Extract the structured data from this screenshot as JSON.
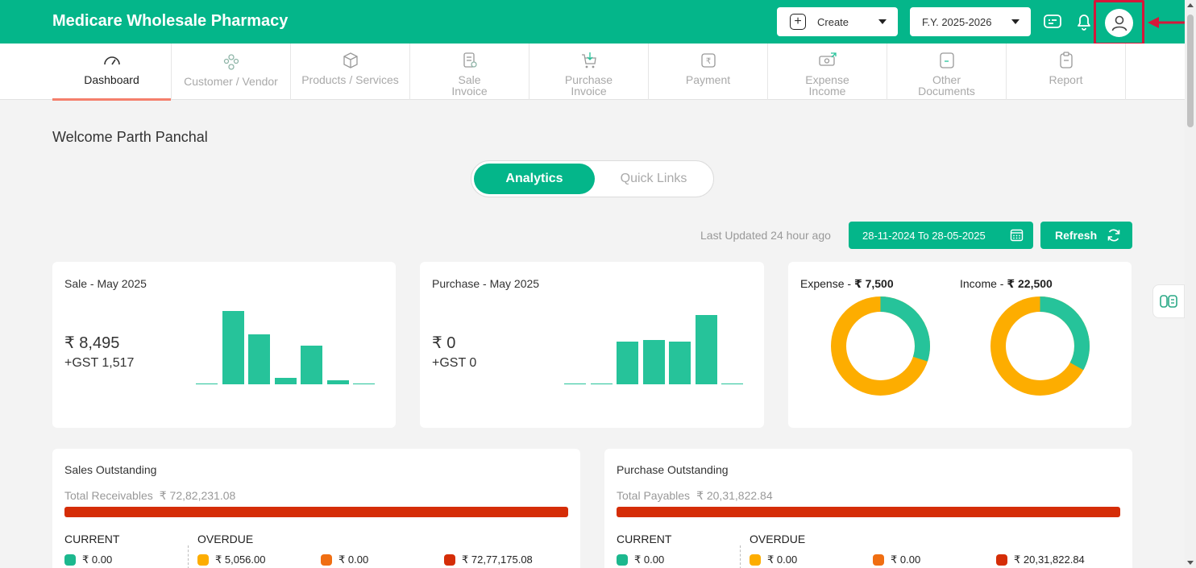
{
  "header": {
    "brand": "Medicare Wholesale Pharmacy",
    "create_label": "Create",
    "fy_label": "F.Y. 2025-2026",
    "icons": [
      "message-icon",
      "bell-icon",
      "user-icon"
    ],
    "brand_color": "#04b68a",
    "highlight_color": "#d6163a"
  },
  "nav": {
    "items": [
      {
        "label": "Dashboard",
        "icon": "speedometer-icon",
        "active": true
      },
      {
        "label": "Customer / Vendor",
        "icon": "people-icon"
      },
      {
        "label": "Products / Services",
        "icon": "box-icon"
      },
      {
        "label1": "Sale",
        "label2": "Invoice",
        "icon": "invoice-icon"
      },
      {
        "label1": "Purchase",
        "label2": "Invoice",
        "icon": "cart-icon"
      },
      {
        "label": "Payment",
        "icon": "rupee-icon"
      },
      {
        "label1": "Expense",
        "label2": "Income",
        "icon": "money-icon"
      },
      {
        "label1": "Other",
        "label2": "Documents",
        "icon": "document-icon"
      },
      {
        "label": "Report",
        "icon": "clipboard-icon"
      }
    ]
  },
  "main": {
    "welcome": "Welcome Parth Panchal",
    "tabs": [
      "Analytics",
      "Quick Links"
    ],
    "last_updated": "Last Updated 24 hour ago",
    "date_range": "28-11-2024 To 28-05-2025",
    "refresh_label": "Refresh"
  },
  "sale_card": {
    "title": "Sale - May 2025",
    "amount": "₹ 8,495",
    "gst": "+GST 1,517",
    "bar_levels": [
      0.01,
      1.0,
      0.68,
      0.09,
      0.53,
      0.06,
      0.01
    ]
  },
  "purchase_card": {
    "title": "Purchase - May 2025",
    "amount": "₹ 0",
    "gst": "+GST 0",
    "bar_levels": [
      0.01,
      0.01,
      0.6,
      0.62,
      0.6,
      0.98,
      0.01
    ]
  },
  "expense_income": {
    "expense_label": "Expense - ",
    "expense_amount": "₹ 7,500",
    "income_label": "Income - ",
    "income_amount": "₹ 22,500",
    "donut_colors": [
      "#26c39a",
      "#fdad00"
    ],
    "expense_green_fraction": 0.3,
    "income_green_fraction": 0.33
  },
  "sales_outstanding": {
    "title": "Sales Outstanding",
    "total_label": "Total Receivables",
    "total_amount": "₹ 72,82,231.08",
    "current_label": "CURRENT",
    "overdue_label": "OVERDUE",
    "legend": [
      {
        "color": "#1cb88e",
        "value": "₹ 0.00"
      },
      {
        "color": "#fdad00",
        "value": "₹ 5,056.00"
      },
      {
        "color": "#f06e12",
        "value": "₹ 0.00"
      },
      {
        "color": "#d52d07",
        "value": "₹ 72,77,175.08"
      }
    ]
  },
  "purchase_outstanding": {
    "title": "Purchase Outstanding",
    "total_label": "Total Payables",
    "total_amount": "₹ 20,31,822.84",
    "current_label": "CURRENT",
    "overdue_label": "OVERDUE",
    "legend": [
      {
        "color": "#1cb88e",
        "value": "₹ 0.00"
      },
      {
        "color": "#fdad00",
        "value": "₹ 0.00"
      },
      {
        "color": "#f06e12",
        "value": "₹ 0.00"
      },
      {
        "color": "#d52d07",
        "value": "₹ 20,31,822.84"
      }
    ]
  }
}
